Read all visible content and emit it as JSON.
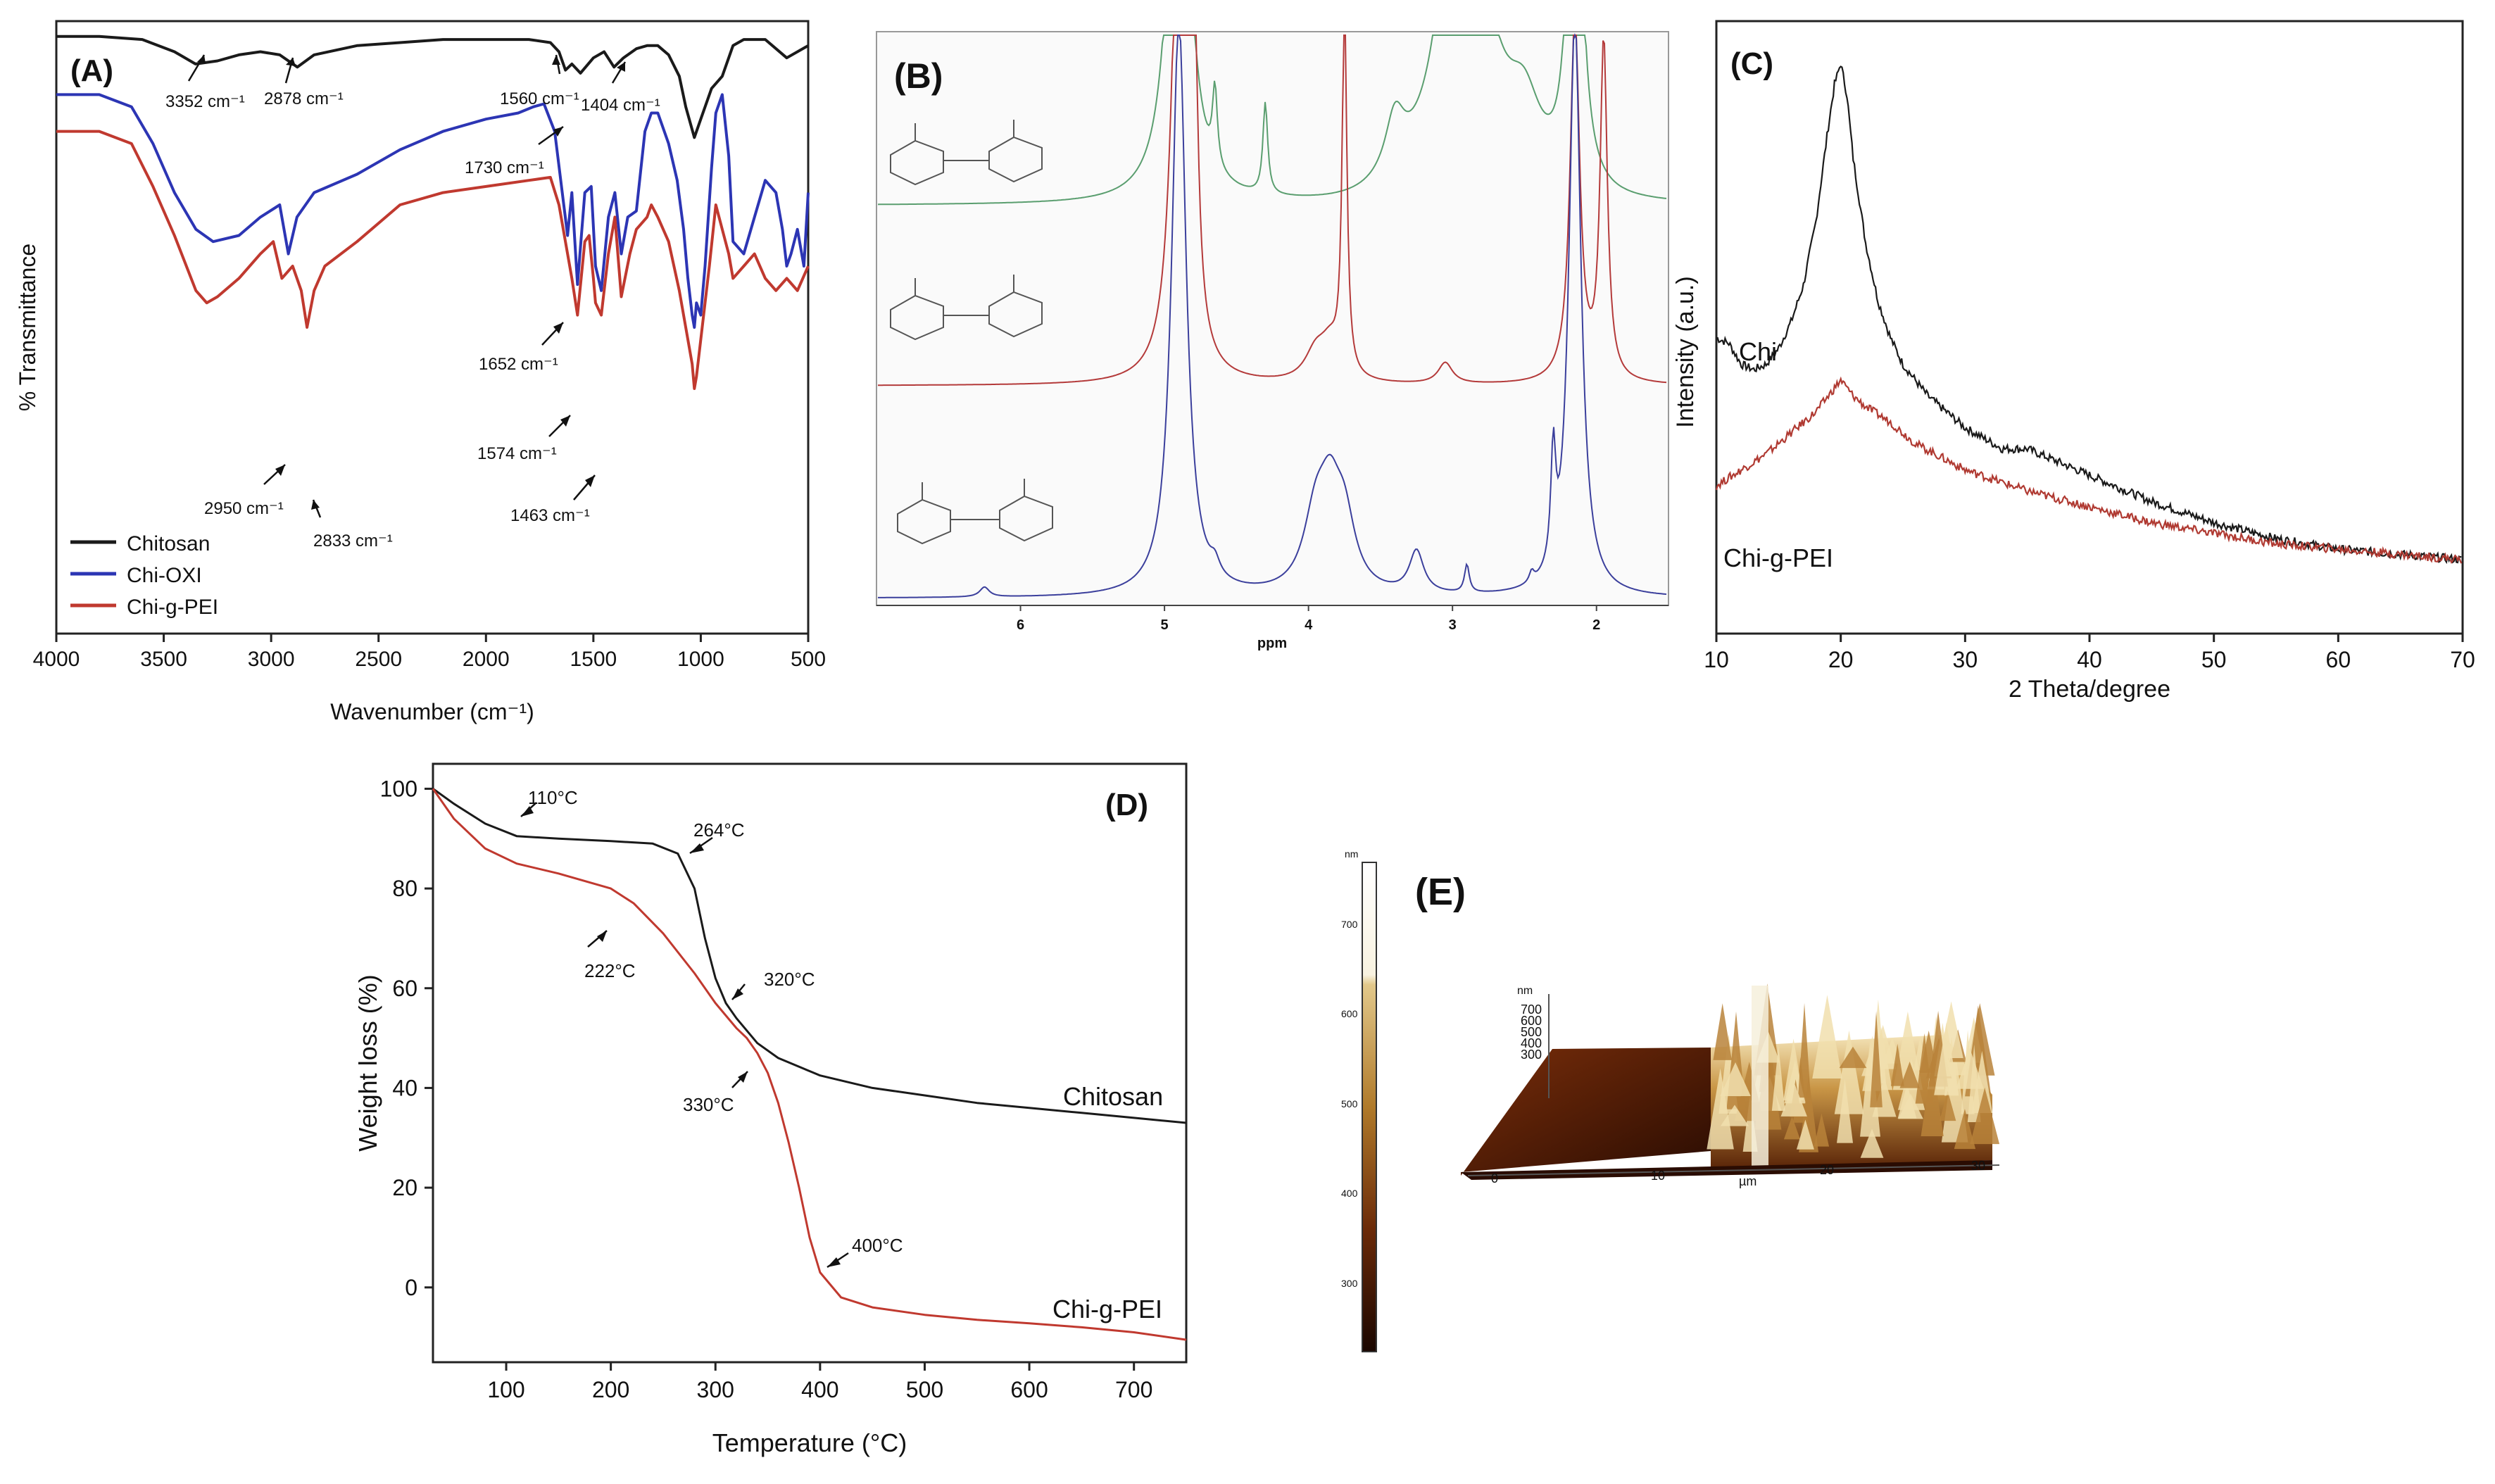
{
  "colors": {
    "black": "#1a1a1a",
    "blue": "#2c35b4",
    "red": "#c0392f",
    "green": "#5a9e6f",
    "nmr_red": "#b43a3a",
    "nmr_blue": "#3b3f9c"
  },
  "chart_data": [
    {
      "id": "A",
      "type": "line",
      "panel_label": "(A)",
      "xlabel": "Wavenumber (cm⁻¹)",
      "ylabel": "% Transmittance",
      "xlim": [
        4000,
        500
      ],
      "xticks": [
        "4000",
        "3500",
        "3000",
        "2500",
        "2000",
        "1500",
        "1000",
        "500"
      ],
      "x_reversed": true,
      "y_ticks_shown": false,
      "legend_position": "bottom-left",
      "series": [
        {
          "name": "Chitosan",
          "color": "#1a1a1a",
          "x": [
            4000,
            3800,
            3600,
            3450,
            3352,
            3250,
            3150,
            3050,
            2960,
            2878,
            2800,
            2600,
            2400,
            2200,
            2000,
            1800,
            1700,
            1660,
            1630,
            1600,
            1560,
            1500,
            1450,
            1404,
            1360,
            1300,
            1250,
            1200,
            1150,
            1100,
            1070,
            1030,
            1000,
            950,
            900,
            850,
            800,
            700,
            600,
            500
          ],
          "y": [
            97.5,
            97.5,
            97,
            95,
            93,
            93.5,
            94.5,
            95,
            94.5,
            92.5,
            94.5,
            96,
            96.5,
            97,
            97,
            97,
            96.5,
            95,
            92,
            93,
            91.5,
            94,
            95,
            92.5,
            94,
            95.5,
            96,
            96,
            94.5,
            91,
            86,
            81,
            84,
            89,
            91,
            96,
            97,
            97,
            94,
            96
          ]
        },
        {
          "name": "Chi-OXI",
          "color": "#2c35b4",
          "x": [
            4000,
            3800,
            3650,
            3550,
            3450,
            3350,
            3270,
            3150,
            3050,
            2960,
            2920,
            2880,
            2800,
            2600,
            2400,
            2200,
            2000,
            1850,
            1780,
            1730,
            1680,
            1652,
            1620,
            1600,
            1574,
            1540,
            1510,
            1490,
            1463,
            1430,
            1400,
            1370,
            1340,
            1300,
            1260,
            1230,
            1200,
            1150,
            1110,
            1080,
            1060,
            1040,
            1030,
            1020,
            1000,
            980,
            950,
            930,
            900,
            870,
            850,
            800,
            750,
            700,
            650,
            620,
            600,
            580,
            550,
            520,
            500
          ],
          "y": [
            88,
            88,
            86,
            80,
            72,
            66,
            64,
            65,
            68,
            70,
            62,
            68,
            72,
            75,
            79,
            82,
            84,
            85,
            86,
            86.5,
            82,
            74,
            65,
            72,
            57,
            72,
            73,
            60,
            56,
            68,
            72,
            62,
            68,
            69,
            82,
            85,
            85,
            80,
            74,
            66,
            58,
            52,
            50,
            54,
            52,
            60,
            76,
            85,
            88,
            78,
            64,
            62,
            68,
            74,
            72,
            66,
            60,
            62,
            66,
            60,
            72
          ]
        },
        {
          "name": "Chi-g-PEI",
          "color": "#c0392f",
          "x": [
            4000,
            3800,
            3650,
            3550,
            3450,
            3350,
            3300,
            3250,
            3150,
            3050,
            2990,
            2950,
            2900,
            2860,
            2833,
            2800,
            2750,
            2600,
            2400,
            2200,
            2000,
            1800,
            1700,
            1660,
            1620,
            1600,
            1574,
            1540,
            1520,
            1500,
            1490,
            1463,
            1430,
            1400,
            1370,
            1330,
            1300,
            1250,
            1230,
            1200,
            1150,
            1100,
            1060,
            1040,
            1030,
            1020,
            1000,
            960,
            930,
            900,
            870,
            850,
            800,
            750,
            700,
            650,
            600,
            550,
            500
          ],
          "y": [
            82,
            82,
            80,
            73,
            65,
            56,
            54,
            55,
            58,
            62,
            64,
            58,
            60,
            56,
            50,
            56,
            60,
            64,
            70,
            72,
            73,
            74,
            74.5,
            70,
            62,
            58,
            52,
            64,
            65,
            58,
            54,
            52,
            62,
            68,
            55,
            62,
            66,
            68,
            70,
            68,
            64,
            56,
            48,
            44,
            40,
            42,
            48,
            60,
            70,
            66,
            62,
            58,
            60,
            62,
            58,
            56,
            58,
            56,
            60
          ]
        }
      ],
      "annotations": [
        "3352 cm⁻¹",
        "2878 cm⁻¹",
        "1560 cm⁻¹",
        "1404 cm⁻¹",
        "1730 cm⁻¹",
        "1652 cm⁻¹",
        "1574 cm⁻¹",
        "2950 cm⁻¹",
        "2833 cm⁻¹",
        "1463 cm⁻¹"
      ]
    },
    {
      "id": "B",
      "type": "line",
      "panel_label": "(B)",
      "xlabel": "ppm",
      "xlim": [
        7,
        1.5
      ],
      "xticks": [
        "6",
        "5",
        "4",
        "3",
        "2"
      ],
      "y_ticks_shown": false,
      "series": [
        {
          "color": "#5a9e6f",
          "peaks_ppm": [
            4.9,
            4.3,
            4.65,
            3.4,
            3.05,
            2.95,
            2.8,
            2.5,
            2.15
          ]
        },
        {
          "color": "#b43a3a",
          "peaks_ppm": [
            4.9,
            4.8,
            3.95,
            3.85,
            3.75,
            3.05,
            2.15,
            1.95
          ]
        },
        {
          "color": "#3b3f9c",
          "peaks_ppm": [
            6.25,
            4.9,
            4.65,
            3.95,
            3.85,
            3.75,
            3.25,
            2.9,
            2.45,
            2.3,
            2.15
          ]
        }
      ]
    },
    {
      "id": "C",
      "type": "line",
      "panel_label": "(C)",
      "xlabel": "2 Theta/degree",
      "ylabel": "Intensity (a.u.)",
      "xlim": [
        10,
        70
      ],
      "xticks": [
        "10",
        "20",
        "30",
        "40",
        "50",
        "60",
        "70"
      ],
      "y_ticks_shown": false,
      "series": [
        {
          "name": "Chi",
          "color": "#1a1a1a",
          "x": [
            10,
            11,
            12,
            13,
            14,
            15,
            16,
            17,
            18,
            19,
            19.5,
            20,
            20.5,
            21,
            22,
            23,
            24,
            25,
            27,
            30,
            33,
            35,
            38,
            40,
            45,
            50,
            55,
            60,
            65,
            70
          ],
          "y": [
            48,
            47,
            43,
            42,
            43,
            46,
            51,
            58,
            70,
            88,
            96,
            100,
            94,
            82,
            66,
            55,
            48,
            43,
            37,
            31,
            27,
            27,
            24,
            22,
            17,
            13,
            10,
            8,
            7,
            6
          ]
        },
        {
          "name": "Chi-g-PEI",
          "color": "#b03a32",
          "x": [
            10,
            12,
            14,
            16,
            18,
            19,
            20,
            21,
            22,
            24,
            26,
            30,
            35,
            40,
            45,
            50,
            55,
            60,
            65,
            70
          ],
          "y": [
            20,
            23,
            26,
            30,
            34,
            37,
            40,
            37,
            35,
            32,
            28,
            23,
            19,
            16,
            13,
            11,
            9,
            8,
            7,
            6
          ]
        }
      ]
    },
    {
      "id": "D",
      "type": "line",
      "panel_label": "(D)",
      "xlabel": "Temperature (°C)",
      "ylabel": "Weight loss (%)",
      "xlim": [
        30,
        750
      ],
      "ylim": [
        -15,
        105
      ],
      "xticks": [
        "100",
        "200",
        "300",
        "400",
        "500",
        "600",
        "700"
      ],
      "yticks": [
        "0",
        "20",
        "40",
        "60",
        "80",
        "100"
      ],
      "series": [
        {
          "name": "Chitosan",
          "color": "#1a1a1a",
          "x": [
            30,
            50,
            80,
            110,
            150,
            200,
            240,
            264,
            280,
            290,
            300,
            310,
            320,
            340,
            360,
            400,
            450,
            500,
            550,
            600,
            650,
            700,
            750
          ],
          "y": [
            100,
            97,
            93,
            90.5,
            90,
            89.5,
            89,
            87,
            80,
            70,
            62,
            57,
            54,
            49,
            46,
            42.5,
            40,
            38.5,
            37,
            36,
            35,
            34,
            33
          ]
        },
        {
          "name": "Chi-g-PEI",
          "color": "#c0392f",
          "x": [
            30,
            50,
            80,
            110,
            150,
            200,
            222,
            250,
            280,
            300,
            320,
            330,
            340,
            350,
            360,
            370,
            380,
            390,
            400,
            420,
            450,
            500,
            550,
            600,
            650,
            700,
            750
          ],
          "y": [
            100,
            94,
            88,
            85,
            83,
            80,
            77,
            71,
            63,
            57,
            52,
            50,
            47,
            43,
            37,
            29,
            20,
            10,
            3,
            -2,
            -4,
            -5.5,
            -6.5,
            -7.2,
            -8,
            -9,
            -10.5
          ]
        }
      ],
      "annotations": [
        "110°C",
        "264°C",
        "222°C",
        "320°C",
        "330°C",
        "400°C"
      ],
      "series_labels": [
        "Chitosan",
        "Chi-g-PEI"
      ]
    }
  ],
  "panel_E": {
    "panel_label": "(E)",
    "colorbar_unit": "nm",
    "colorbar_ticks": [
      "700",
      "600",
      "500",
      "400",
      "300"
    ],
    "z_unit": "nm",
    "z_ticks": [
      "700",
      "600",
      "500",
      "400",
      "300"
    ],
    "x_unit": "µm",
    "x_ticks": [
      "0",
      "10",
      "20",
      "30"
    ]
  }
}
